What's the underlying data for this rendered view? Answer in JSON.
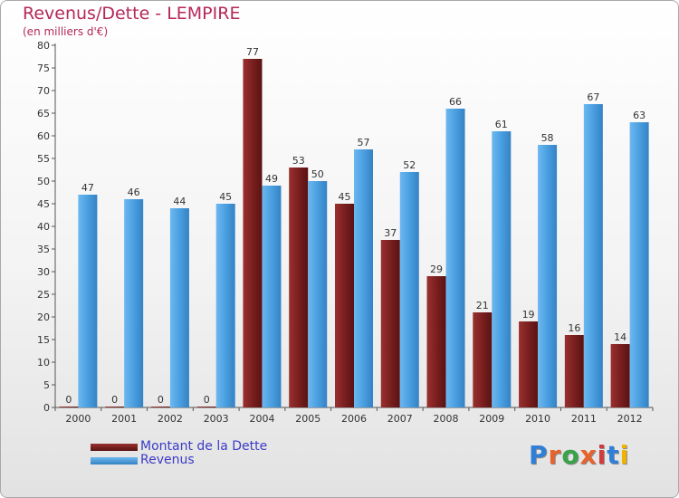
{
  "title": "Revenus/Dette - LEMPIRE",
  "subtitle": "(en milliers d'€)",
  "logo": {
    "text": "Proxiti",
    "colors": [
      "#2f7fd6",
      "#e8622c",
      "#3aa34a",
      "#e8622c",
      "#d23b3b",
      "#2f7fd6",
      "#f0b400"
    ]
  },
  "chart_data": {
    "type": "bar",
    "title": "Revenus/Dette - LEMPIRE",
    "ylabel": "(en milliers d'€)",
    "categories": [
      "2000",
      "2001",
      "2002",
      "2003",
      "2004",
      "2005",
      "2006",
      "2007",
      "2008",
      "2009",
      "2010",
      "2011",
      "2012"
    ],
    "ylim": [
      0,
      80
    ],
    "yticks": [
      0,
      5,
      10,
      15,
      20,
      25,
      30,
      35,
      40,
      45,
      50,
      55,
      60,
      65,
      70,
      75,
      80
    ],
    "grid": false,
    "legend_position": "bottom-left",
    "series": [
      {
        "name": "Montant de la Dette",
        "color": "#7a1f1f",
        "values": [
          0,
          0,
          0,
          0,
          77,
          53,
          45,
          37,
          29,
          21,
          19,
          16,
          14
        ]
      },
      {
        "name": "Revenus",
        "color": "#4a9fe0",
        "values": [
          47,
          46,
          44,
          45,
          49,
          50,
          57,
          52,
          66,
          61,
          58,
          67,
          63
        ]
      }
    ]
  }
}
